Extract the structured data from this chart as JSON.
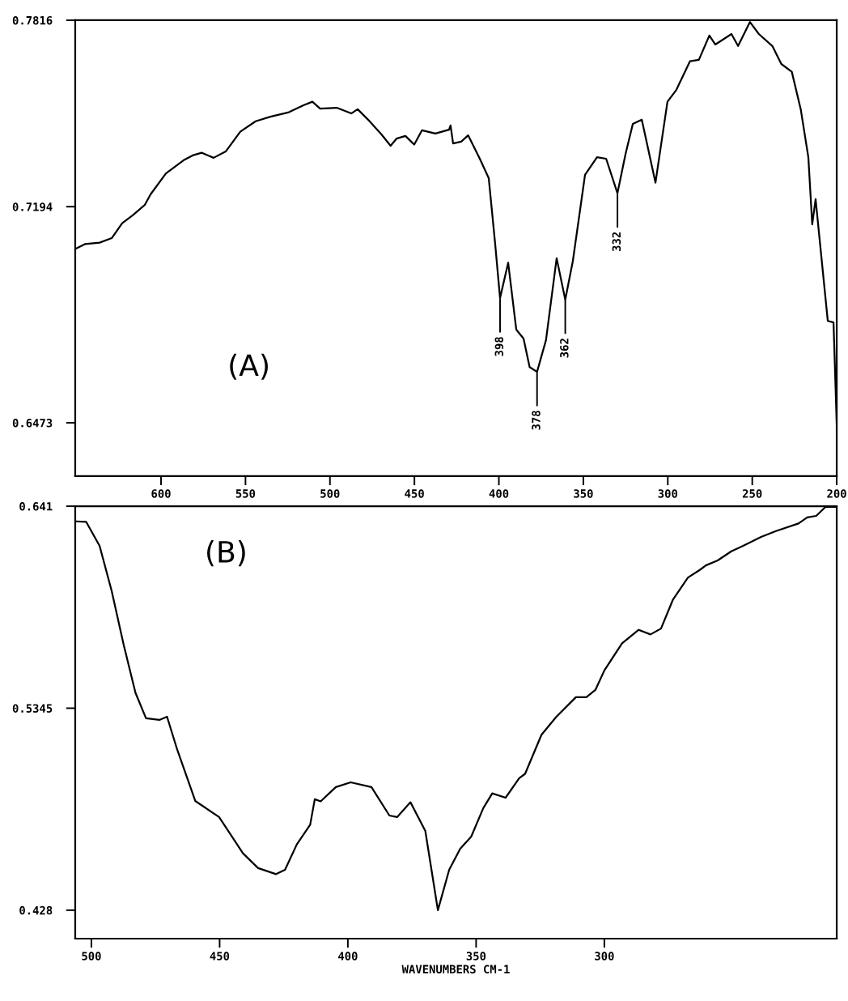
{
  "chart_data": [
    {
      "type": "line",
      "x": [
        650.4,
        645.1,
        636.4,
        629.2,
        623,
        616.8,
        609.6,
        606.2,
        597.1,
        586.6,
        581.3,
        576,
        568.9,
        561.7,
        553.1,
        544,
        535.3,
        524.3,
        515.7,
        510.4,
        505.8,
        496,
        487.4,
        483.6,
        477.4,
        469.5,
        464.1,
        460.6,
        455.3,
        450.1,
        445.5,
        437.6,
        429.5,
        428.6,
        427.1,
        422.3,
        418.2,
        411.3,
        406,
        402.2,
        399.3,
        394.5,
        389.7,
        385.4,
        381.8,
        377.4,
        372.1,
        365.8,
        360.7,
        356.2,
        349,
        341.9,
        336.5,
        329.8,
        325,
        320.7,
        315.4,
        307.3,
        300.2,
        294.9,
        286.9,
        281.6,
        275.4,
        271.9,
        262.3,
        258.4,
        251.4,
        246.1,
        238.1,
        232.8,
        226.6,
        221.3,
        216.8,
        214.5,
        212.5,
        205.3,
        201.9,
        200
      ],
      "series": [
        {
          "color": "#000000",
          "values": [
            0.7054,
            0.7069,
            0.7074,
            0.7089,
            0.7139,
            0.7165,
            0.72,
            0.7235,
            0.7305,
            0.7349,
            0.7365,
            0.7374,
            0.7357,
            0.7378,
            0.7444,
            0.7479,
            0.7494,
            0.7509,
            0.7532,
            0.7544,
            0.7521,
            0.7524,
            0.7505,
            0.7519,
            0.7484,
            0.7435,
            0.7397,
            0.7421,
            0.743,
            0.7401,
            0.7449,
            0.7438,
            0.7451,
            0.7465,
            0.7405,
            0.7411,
            0.7432,
            0.7354,
            0.7289,
            0.707,
            0.6889,
            0.7007,
            0.6784,
            0.6754,
            0.6659,
            0.6643,
            0.6749,
            0.7022,
            0.6884,
            0.7013,
            0.73,
            0.7359,
            0.7354,
            0.7239,
            0.737,
            0.747,
            0.7484,
            0.7274,
            0.7544,
            0.7584,
            0.7679,
            0.7684,
            0.7765,
            0.7735,
            0.777,
            0.773,
            0.781,
            0.777,
            0.773,
            0.767,
            0.7644,
            0.7519,
            0.7359,
            0.7135,
            0.7219,
            0.6813,
            0.6808,
            0.6468
          ]
        }
      ],
      "xlim": [
        650.8,
        200
      ],
      "xticks": [
        600,
        550,
        500,
        450,
        400,
        350,
        300,
        250,
        200
      ],
      "ylim": [
        0.6295,
        0.7816
      ],
      "yticks": [
        0.7816,
        0.7194,
        0.6473
      ],
      "grid": false,
      "annotations": [
        "(A)",
        {
          "text": "398",
          "x": 399.3,
          "y": 0.6889
        },
        {
          "text": "378",
          "x": 377.4,
          "y": 0.6643
        },
        {
          "text": "362",
          "x": 360.7,
          "y": 0.6884
        },
        {
          "text": "332",
          "x": 329.8,
          "y": 0.7239
        }
      ]
    },
    {
      "type": "line",
      "x": [
        506.1,
        502.0,
        496.8,
        492.1,
        487.4,
        482.8,
        478.7,
        473.5,
        470.5,
        466.5,
        459.5,
        450.2,
        440.9,
        435,
        428,
        424.5,
        419.9,
        414.7,
        412.9,
        410.6,
        404.7,
        398.9,
        390.8,
        383.8,
        380.8,
        375.6,
        369.8,
        364.9,
        360.5,
        356.2,
        351.9,
        347.2,
        343.7,
        338.5,
        333.2,
        330.9,
        324.5,
        318.7,
        311.1,
        307,
        303.5,
        300,
        293.1,
        286.6,
        282,
        277.9,
        273.3,
        267.4,
        262.8,
        260.4,
        255.8,
        250.5,
        245.9,
        238.9,
        233.1,
        224.3,
        220.9,
        217.4,
        213.8,
        209.4
      ],
      "series": [
        {
          "color": "#000000",
          "values": [
            0.633,
            0.6327,
            0.6201,
            0.5964,
            0.5679,
            0.5426,
            0.5292,
            0.5283,
            0.53,
            0.5125,
            0.4856,
            0.4771,
            0.458,
            0.4502,
            0.447,
            0.4493,
            0.4627,
            0.473,
            0.4865,
            0.4854,
            0.4929,
            0.4954,
            0.4929,
            0.4779,
            0.4771,
            0.4849,
            0.4698,
            0.428,
            0.4493,
            0.4604,
            0.4668,
            0.4818,
            0.4896,
            0.4873,
            0.4976,
            0.4999,
            0.5205,
            0.53,
            0.5403,
            0.5403,
            0.5441,
            0.5544,
            0.5687,
            0.5758,
            0.5734,
            0.5765,
            0.5916,
            0.6034,
            0.6074,
            0.6098,
            0.6124,
            0.6172,
            0.6201,
            0.6248,
            0.6279,
            0.6319,
            0.6351,
            0.6359,
            0.6406,
            0.6406
          ]
        }
      ],
      "xlim": [
        506.3,
        209.4
      ],
      "xticks": [
        500,
        450,
        400,
        350,
        300
      ],
      "ylim": [
        0.413,
        0.641
      ],
      "yticks": [
        0.641,
        0.5345,
        0.428
      ],
      "grid": false,
      "xlabel": "WAVENUMBERS CM-1",
      "annotations": [
        "(B)"
      ]
    }
  ]
}
